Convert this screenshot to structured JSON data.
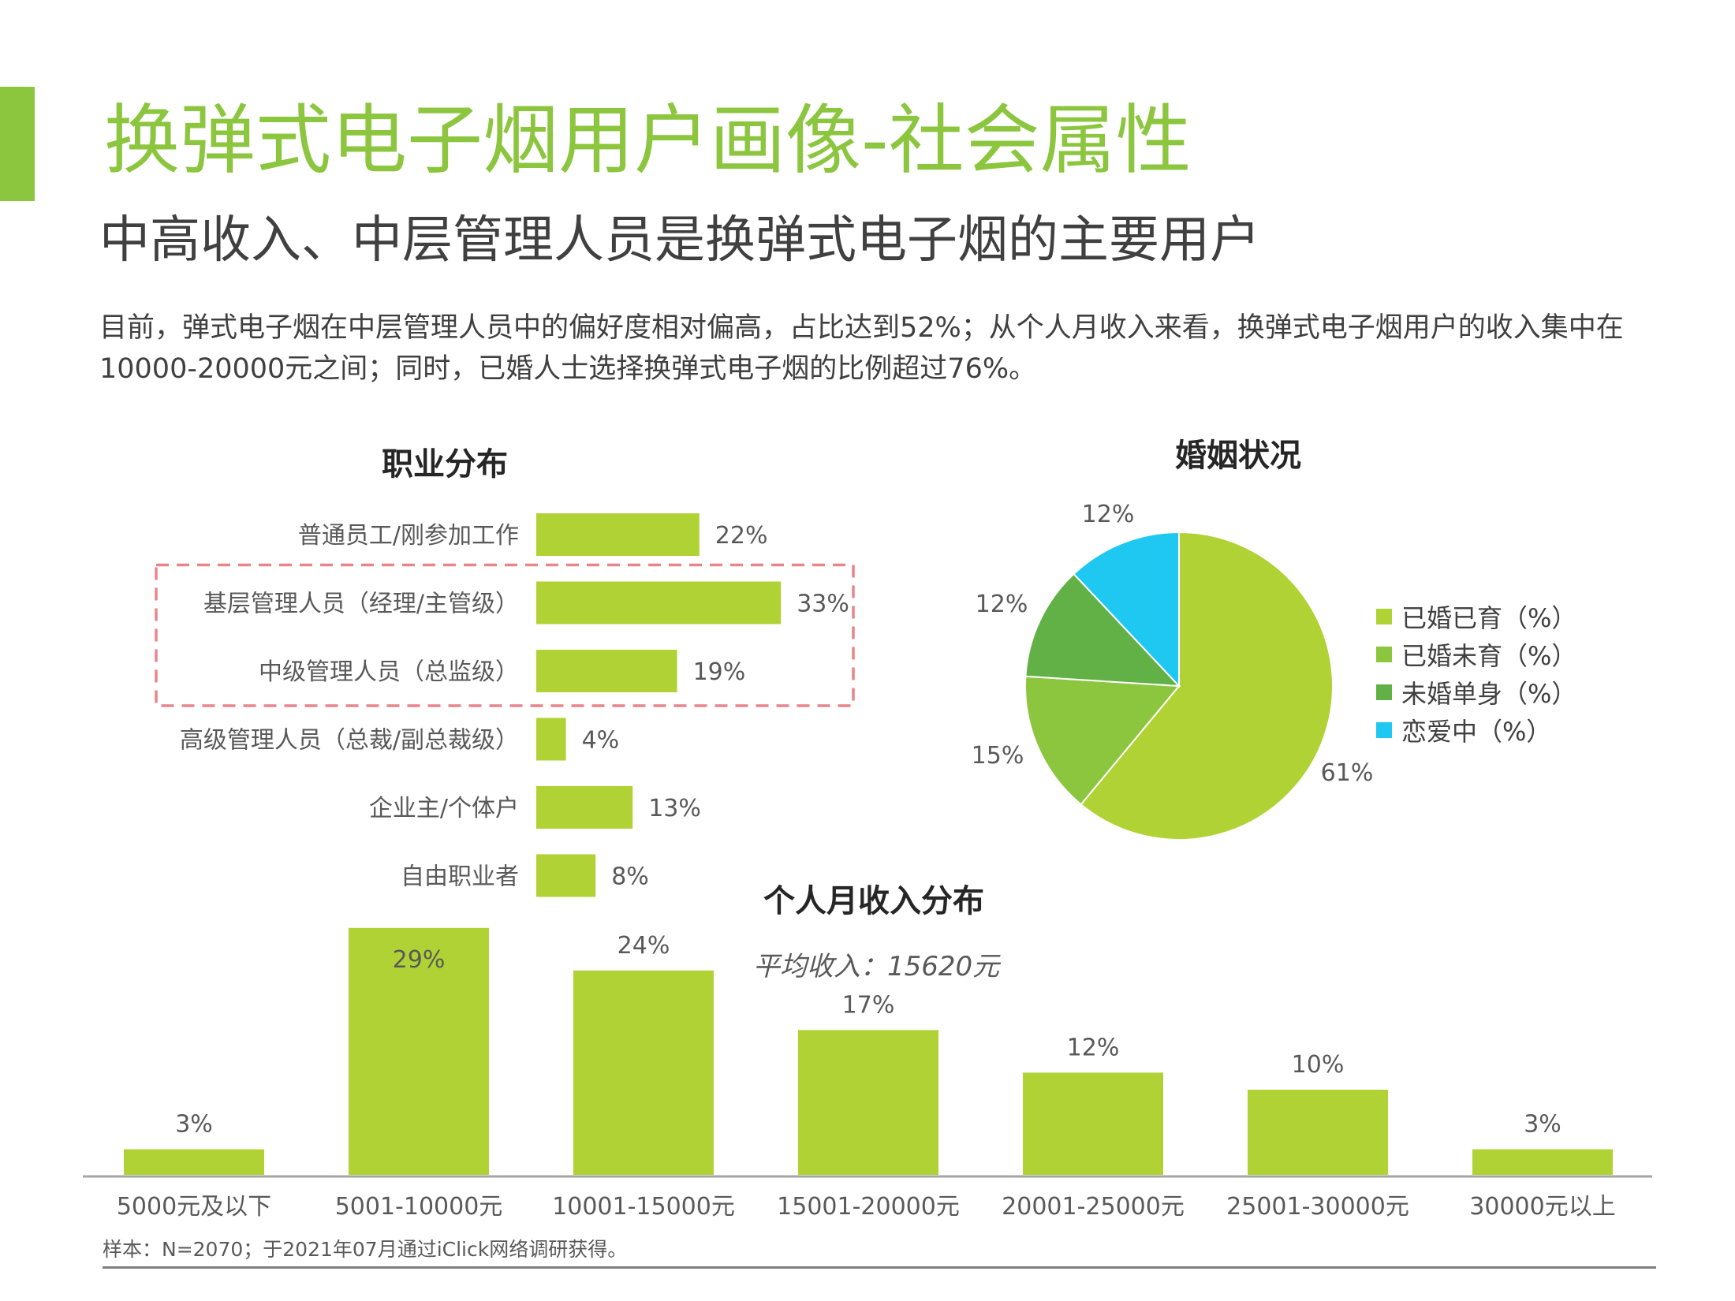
{
  "header": {
    "title": "换弹式电子烟用户画像-社会属性",
    "subtitle": "中高收入、中层管理人员是换弹式电子烟的主要用户",
    "description": "目前，弹式电子烟在中层管理人员中的偏好度相对偏高，占比达到52%；从个人月收入来看，换弹式电子烟用户的收入集中在10000-20000元之间；同时，已婚人士选择换弹式电子烟的比例超过76%。"
  },
  "colors": {
    "accent": "#8cc63f",
    "bar": "#b1d235",
    "highlight_box": "#e8858b"
  },
  "occupation_title": "职业分布",
  "marriage_title": "婚姻状况",
  "income_title": "个人月收入分布",
  "income_average": "平均收入：15620元",
  "footnote": "样本：N=2070；于2021年07月通过iClick网络调研获得。",
  "chart_data": [
    {
      "type": "bar",
      "orientation": "horizontal",
      "title": "职业分布",
      "categories": [
        "普通员工/刚参加工作",
        "基层管理人员（经理/主管级）",
        "中级管理人员（总监级）",
        "高级管理人员（总裁/副总裁级）",
        "企业主/个体户",
        "自由职业者"
      ],
      "values": [
        22,
        33,
        19,
        4,
        13,
        8
      ],
      "value_labels": [
        "22%",
        "33%",
        "19%",
        "4%",
        "13%",
        "8%"
      ],
      "highlighted": [
        "基层管理人员（经理/主管级）",
        "中级管理人员（总监级）"
      ]
    },
    {
      "type": "pie",
      "title": "婚姻状况",
      "labels": [
        "已婚已育（%）",
        "已婚未育（%）",
        "未婚单身（%）",
        "恋爱中（%）"
      ],
      "values": [
        61,
        15,
        12,
        12
      ],
      "value_labels": [
        "61%",
        "15%",
        "12%",
        "12%"
      ],
      "colors": [
        "#b1d235",
        "#8cc63f",
        "#62b146",
        "#1ec8f0"
      ],
      "legend": "right"
    },
    {
      "type": "bar",
      "orientation": "vertical",
      "title": "个人月收入分布",
      "categories": [
        "5000元及以下",
        "5001-10000元",
        "10001-15000元",
        "15001-20000元",
        "20001-25000元",
        "25001-30000元",
        "30000元以上"
      ],
      "values": [
        3,
        29,
        24,
        17,
        12,
        10,
        3
      ],
      "value_labels": [
        "3%",
        "29%",
        "24%",
        "17%",
        "12%",
        "10%",
        "3%"
      ]
    }
  ]
}
